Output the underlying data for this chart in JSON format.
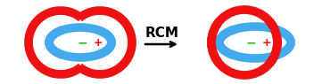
{
  "red_color": "#ee1111",
  "blue_color": "#44aaee",
  "green_color": "#22bb22",
  "white_color": "#ffffff",
  "bg_color": "#ffffff",
  "arrow_text": "RCM",
  "lw_thick": 7,
  "symbol_fontsize": 9,
  "rcm_fontsize": 11,
  "figsize": [
    3.61,
    0.95
  ],
  "dpi": 100
}
